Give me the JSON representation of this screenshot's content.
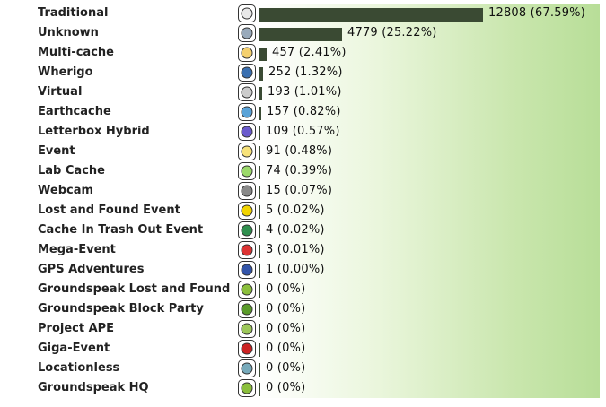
{
  "chart_data": {
    "type": "bar",
    "orientation": "horizontal",
    "categories": [
      "Traditional",
      "Unknown",
      "Multi-cache",
      "Wherigo",
      "Virtual",
      "Earthcache",
      "Letterbox Hybrid",
      "Event",
      "Lab Cache",
      "Webcam",
      "Lost and Found Event",
      "Cache In Trash Out Event",
      "Mega-Event",
      "GPS Adventures",
      "Groundspeak Lost and Found",
      "Groundspeak Block Party",
      "Project APE",
      "Giga-Event",
      "Locationless",
      "Groundspeak HQ"
    ],
    "values": [
      12808,
      4779,
      457,
      252,
      193,
      157,
      109,
      91,
      74,
      15,
      5,
      4,
      3,
      1,
      0,
      0,
      0,
      0,
      0,
      0
    ],
    "value_labels": [
      "12808 (67.59%)",
      "4779 (25.22%)",
      "457 (2.41%)",
      "252 (1.32%)",
      "193 (1.01%)",
      "157 (0.82%)",
      "109 (0.57%)",
      "91 (0.48%)",
      "74 (0.39%)",
      "15 (0.07%)",
      "5 (0.02%)",
      "4 (0.02%)",
      "3 (0.01%)",
      "1 (0.00%)",
      "0 (0%)",
      "0 (0%)",
      "0 (0%)",
      "0 (0%)",
      "0 (0%)",
      "0 (0%)"
    ],
    "icons": [
      "traditional-cache-icon",
      "unknown-cache-icon",
      "multi-cache-icon",
      "wherigo-icon",
      "virtual-cache-icon",
      "earthcache-icon",
      "letterbox-hybrid-icon",
      "event-icon",
      "lab-cache-icon",
      "webcam-icon",
      "lost-and-found-event-icon",
      "cito-event-icon",
      "mega-event-icon",
      "gps-adventures-icon",
      "groundspeak-lost-and-found-icon",
      "groundspeak-block-party-icon",
      "project-ape-icon",
      "giga-event-icon",
      "locationless-icon",
      "groundspeak-hq-icon"
    ],
    "bar_color": "#3a4a33",
    "background_gradient": [
      "#ffffff",
      "#b8de98"
    ],
    "grid": false,
    "legend": "none"
  }
}
